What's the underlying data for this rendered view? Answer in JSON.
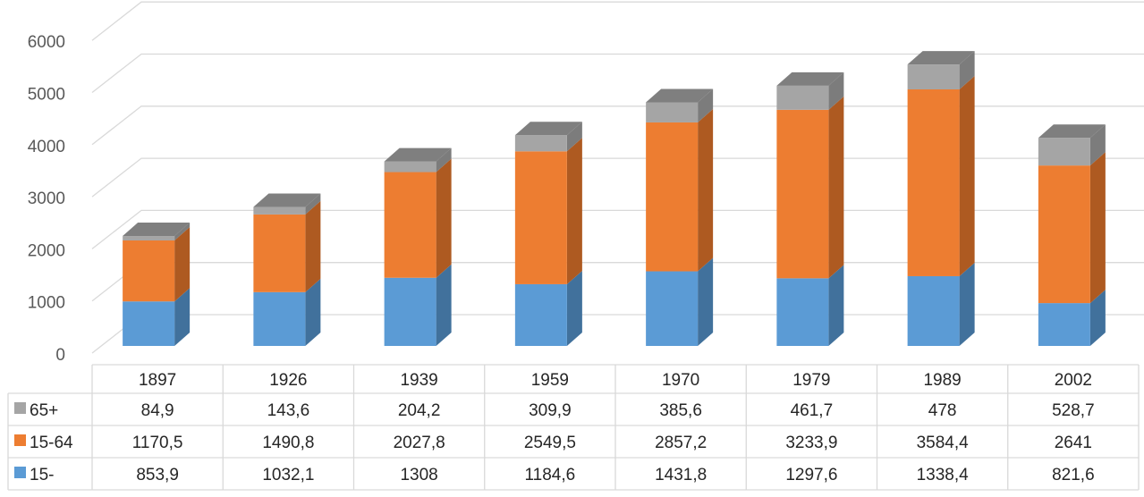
{
  "chart_data": {
    "type": "bar",
    "stacked": true,
    "three_d": true,
    "categories": [
      "1897",
      "1926",
      "1939",
      "1959",
      "1970",
      "1979",
      "1989",
      "2002"
    ],
    "series": [
      {
        "name": "15-",
        "color": "#5b9bd5",
        "side_color": "#41719c",
        "values": [
          853.9,
          1032.1,
          1308,
          1184.6,
          1431.8,
          1297.6,
          1338.4,
          821.6
        ],
        "labels": [
          "853,9",
          "1032,1",
          "1308",
          "1184,6",
          "1431,8",
          "1297,6",
          "1338,4",
          "821,6"
        ]
      },
      {
        "name": "15-64",
        "color": "#ed7d31",
        "side_color": "#ae5a21",
        "values": [
          1170.5,
          1490.8,
          2027.8,
          2549.5,
          2857.2,
          3233.9,
          3584.4,
          2641
        ],
        "labels": [
          "1170,5",
          "1490,8",
          "2027,8",
          "2549,5",
          "2857,2",
          "3233,9",
          "3584,4",
          "2641"
        ]
      },
      {
        "name": "65+",
        "color": "#a5a5a5",
        "side_color": "#7c7c7c",
        "values": [
          84.9,
          143.6,
          204.2,
          309.9,
          385.6,
          461.7,
          478,
          528.7
        ],
        "labels": [
          "84,9",
          "143,6",
          "204,2",
          "309,9",
          "385,6",
          "461,7",
          "478",
          "528,7"
        ]
      }
    ],
    "yticks": [
      "0",
      "1000",
      "2000",
      "3000",
      "4000",
      "5000",
      "6000"
    ],
    "ylim": [
      0,
      6000
    ],
    "grid": true,
    "data_table": true,
    "legend": "data-table-keys"
  }
}
